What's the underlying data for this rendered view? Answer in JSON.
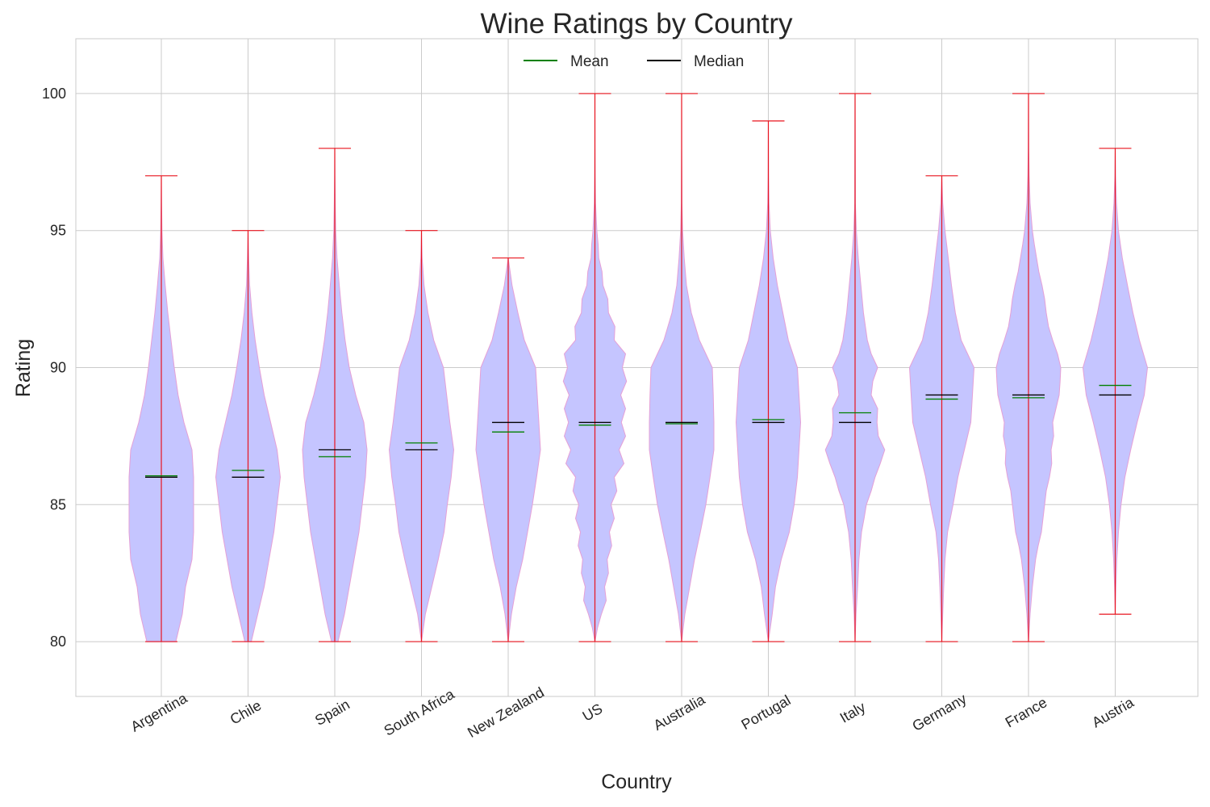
{
  "chart_data": {
    "type": "violin",
    "title": "Wine Ratings by Country",
    "xlabel": "Country",
    "ylabel": "Rating",
    "ylim": [
      78,
      102
    ],
    "yticks": [
      80,
      85,
      90,
      95,
      100
    ],
    "grid": true,
    "legend_placement": "top-center",
    "legend": [
      {
        "label": "Mean",
        "color": "#008000"
      },
      {
        "label": "Median",
        "color": "#000000"
      }
    ],
    "colors": {
      "body_fill": "#c5c5ff",
      "body_edge": "#e5a0d6",
      "extrema_line": "#e8141e",
      "grid": "#cbcbcb",
      "axes_edge": "#cbcbcb",
      "mean": "#008000",
      "median": "#000000"
    },
    "categories": [
      "Argentina",
      "Chile",
      "Spain",
      "South Africa",
      "New Zealand",
      "US",
      "Australia",
      "Portugal",
      "Italy",
      "Germany",
      "France",
      "Austria"
    ],
    "series": [
      {
        "category": "Argentina",
        "min": 80,
        "max": 97,
        "mean": 86.05,
        "median": 86.0,
        "density": [
          [
            80,
            0.45
          ],
          [
            81,
            0.65
          ],
          [
            82,
            0.75
          ],
          [
            83,
            0.95
          ],
          [
            84,
            1.0
          ],
          [
            85,
            1.0
          ],
          [
            86,
            1.0
          ],
          [
            87,
            0.95
          ],
          [
            88,
            0.7
          ],
          [
            89,
            0.52
          ],
          [
            90,
            0.4
          ],
          [
            91,
            0.3
          ],
          [
            92,
            0.2
          ],
          [
            93,
            0.12
          ],
          [
            94,
            0.05
          ],
          [
            95,
            0.02
          ],
          [
            96,
            0.008
          ],
          [
            97,
            0.0
          ]
        ]
      },
      {
        "category": "Chile",
        "min": 80,
        "max": 95,
        "mean": 86.25,
        "median": 86.0,
        "density": [
          [
            80,
            0.1
          ],
          [
            81,
            0.3
          ],
          [
            82,
            0.5
          ],
          [
            83,
            0.65
          ],
          [
            84,
            0.8
          ],
          [
            85,
            0.9
          ],
          [
            86,
            1.0
          ],
          [
            87,
            0.9
          ],
          [
            88,
            0.7
          ],
          [
            89,
            0.5
          ],
          [
            90,
            0.35
          ],
          [
            91,
            0.22
          ],
          [
            92,
            0.12
          ],
          [
            93,
            0.05
          ],
          [
            94,
            0.02
          ],
          [
            95,
            0.0
          ]
        ]
      },
      {
        "category": "Spain",
        "min": 80,
        "max": 98,
        "mean": 86.75,
        "median": 87.0,
        "density": [
          [
            80,
            0.1
          ],
          [
            81,
            0.3
          ],
          [
            82,
            0.45
          ],
          [
            83,
            0.6
          ],
          [
            84,
            0.75
          ],
          [
            85,
            0.85
          ],
          [
            86,
            0.95
          ],
          [
            87,
            1.0
          ],
          [
            88,
            0.9
          ],
          [
            89,
            0.65
          ],
          [
            90,
            0.45
          ],
          [
            91,
            0.32
          ],
          [
            92,
            0.22
          ],
          [
            93,
            0.14
          ],
          [
            94,
            0.07
          ],
          [
            95,
            0.03
          ],
          [
            96,
            0.015
          ],
          [
            97,
            0.005
          ],
          [
            98,
            0.0
          ]
        ]
      },
      {
        "category": "South Africa",
        "min": 80,
        "max": 95,
        "mean": 87.25,
        "median": 87.0,
        "density": [
          [
            80,
            0.0
          ],
          [
            81,
            0.12
          ],
          [
            82,
            0.32
          ],
          [
            83,
            0.52
          ],
          [
            84,
            0.7
          ],
          [
            85,
            0.8
          ],
          [
            86,
            0.92
          ],
          [
            87,
            1.0
          ],
          [
            88,
            0.88
          ],
          [
            89,
            0.78
          ],
          [
            90,
            0.68
          ],
          [
            91,
            0.38
          ],
          [
            92,
            0.2
          ],
          [
            93,
            0.08
          ],
          [
            94,
            0.02
          ],
          [
            95,
            0.0
          ]
        ]
      },
      {
        "category": "New Zealand",
        "min": 80,
        "max": 94,
        "mean": 87.65,
        "median": 88.0,
        "density": [
          [
            80,
            0.0
          ],
          [
            81,
            0.1
          ],
          [
            82,
            0.25
          ],
          [
            83,
            0.45
          ],
          [
            84,
            0.6
          ],
          [
            85,
            0.75
          ],
          [
            86,
            0.88
          ],
          [
            87,
            1.0
          ],
          [
            88,
            0.95
          ],
          [
            89,
            0.9
          ],
          [
            90,
            0.85
          ],
          [
            91,
            0.5
          ],
          [
            92,
            0.3
          ],
          [
            93,
            0.12
          ],
          [
            94,
            0.0
          ]
        ]
      },
      {
        "category": "US",
        "min": 80,
        "max": 100,
        "mean": 87.9,
        "median": 88.0,
        "density": [
          [
            80,
            0.0
          ],
          [
            80.5,
            0.08
          ],
          [
            81,
            0.2
          ],
          [
            81.5,
            0.35
          ],
          [
            82,
            0.3
          ],
          [
            82.5,
            0.42
          ],
          [
            83,
            0.38
          ],
          [
            83.5,
            0.52
          ],
          [
            84,
            0.45
          ],
          [
            84.5,
            0.6
          ],
          [
            85,
            0.5
          ],
          [
            85.5,
            0.68
          ],
          [
            86,
            0.6
          ],
          [
            86.5,
            0.9
          ],
          [
            87,
            0.75
          ],
          [
            87.5,
            0.95
          ],
          [
            88,
            0.82
          ],
          [
            88.5,
            0.95
          ],
          [
            89,
            0.8
          ],
          [
            89.5,
            0.98
          ],
          [
            90,
            0.85
          ],
          [
            90.5,
            0.95
          ],
          [
            91,
            0.6
          ],
          [
            91.5,
            0.62
          ],
          [
            92,
            0.42
          ],
          [
            92.5,
            0.4
          ],
          [
            93,
            0.25
          ],
          [
            93.5,
            0.22
          ],
          [
            94,
            0.12
          ],
          [
            94.5,
            0.1
          ],
          [
            95,
            0.06
          ],
          [
            95.5,
            0.04
          ],
          [
            96,
            0.02
          ],
          [
            97,
            0.008
          ],
          [
            98,
            0.003
          ],
          [
            100,
            0.0
          ]
        ]
      },
      {
        "category": "Australia",
        "min": 80,
        "max": 100,
        "mean": 87.95,
        "median": 88.0,
        "density": [
          [
            80,
            0.0
          ],
          [
            81,
            0.1
          ],
          [
            82,
            0.25
          ],
          [
            83,
            0.4
          ],
          [
            84,
            0.58
          ],
          [
            85,
            0.75
          ],
          [
            86,
            0.88
          ],
          [
            87,
            1.0
          ],
          [
            88,
            1.0
          ],
          [
            89,
            0.98
          ],
          [
            90,
            0.95
          ],
          [
            91,
            0.55
          ],
          [
            92,
            0.3
          ],
          [
            93,
            0.15
          ],
          [
            94,
            0.08
          ],
          [
            95,
            0.03
          ],
          [
            96,
            0.01
          ],
          [
            98,
            0.003
          ],
          [
            100,
            0.0
          ]
        ]
      },
      {
        "category": "Portugal",
        "min": 80,
        "max": 99,
        "mean": 88.1,
        "median": 88.0,
        "density": [
          [
            80,
            0.0
          ],
          [
            81,
            0.12
          ],
          [
            82,
            0.22
          ],
          [
            83,
            0.4
          ],
          [
            84,
            0.65
          ],
          [
            85,
            0.8
          ],
          [
            86,
            0.9
          ],
          [
            87,
            0.95
          ],
          [
            88,
            1.0
          ],
          [
            89,
            0.95
          ],
          [
            90,
            0.9
          ],
          [
            91,
            0.62
          ],
          [
            92,
            0.45
          ],
          [
            93,
            0.28
          ],
          [
            94,
            0.15
          ],
          [
            95,
            0.06
          ],
          [
            96,
            0.02
          ],
          [
            97,
            0.008
          ],
          [
            99,
            0.0
          ]
        ]
      },
      {
        "category": "Italy",
        "min": 80,
        "max": 100,
        "mean": 88.35,
        "median": 88.0,
        "density": [
          [
            80,
            0.0
          ],
          [
            81,
            0.03
          ],
          [
            82,
            0.08
          ],
          [
            83,
            0.12
          ],
          [
            83.5,
            0.16
          ],
          [
            84,
            0.2
          ],
          [
            84.5,
            0.28
          ],
          [
            85,
            0.35
          ],
          [
            85.5,
            0.5
          ],
          [
            86,
            0.62
          ],
          [
            86.5,
            0.78
          ],
          [
            87,
            0.92
          ],
          [
            87.5,
            0.72
          ],
          [
            88,
            0.68
          ],
          [
            88.5,
            0.7
          ],
          [
            89,
            0.5
          ],
          [
            89.5,
            0.55
          ],
          [
            90,
            0.7
          ],
          [
            90.5,
            0.5
          ],
          [
            91,
            0.38
          ],
          [
            91.5,
            0.32
          ],
          [
            92,
            0.26
          ],
          [
            92.5,
            0.22
          ],
          [
            93,
            0.18
          ],
          [
            93.5,
            0.14
          ],
          [
            94,
            0.1
          ],
          [
            94.5,
            0.07
          ],
          [
            95,
            0.04
          ],
          [
            96,
            0.01
          ],
          [
            100,
            0.0
          ]
        ]
      },
      {
        "category": "Germany",
        "min": 80,
        "max": 97,
        "mean": 88.85,
        "median": 89.0,
        "density": [
          [
            80,
            0.0
          ],
          [
            81,
            0.03
          ],
          [
            82,
            0.06
          ],
          [
            83,
            0.1
          ],
          [
            84,
            0.18
          ],
          [
            85,
            0.35
          ],
          [
            86,
            0.5
          ],
          [
            87,
            0.7
          ],
          [
            88,
            0.9
          ],
          [
            89,
            0.95
          ],
          [
            90,
            1.0
          ],
          [
            91,
            0.6
          ],
          [
            92,
            0.42
          ],
          [
            93,
            0.3
          ],
          [
            94,
            0.2
          ],
          [
            95,
            0.1
          ],
          [
            96,
            0.03
          ],
          [
            97,
            0.0
          ]
        ]
      },
      {
        "category": "France",
        "min": 80,
        "max": 100,
        "mean": 88.9,
        "median": 89.0,
        "density": [
          [
            80,
            0.0
          ],
          [
            81,
            0.05
          ],
          [
            82,
            0.12
          ],
          [
            83,
            0.22
          ],
          [
            83.5,
            0.3
          ],
          [
            84,
            0.4
          ],
          [
            84.5,
            0.45
          ],
          [
            85,
            0.5
          ],
          [
            85.5,
            0.55
          ],
          [
            86,
            0.65
          ],
          [
            86.5,
            0.72
          ],
          [
            87,
            0.7
          ],
          [
            87.5,
            0.78
          ],
          [
            88,
            0.75
          ],
          [
            88.5,
            0.85
          ],
          [
            89,
            0.95
          ],
          [
            89.5,
            0.98
          ],
          [
            90,
            1.0
          ],
          [
            90.5,
            0.9
          ],
          [
            91,
            0.75
          ],
          [
            91.5,
            0.62
          ],
          [
            92,
            0.55
          ],
          [
            92.5,
            0.5
          ],
          [
            93,
            0.42
          ],
          [
            93.5,
            0.32
          ],
          [
            94,
            0.25
          ],
          [
            94.5,
            0.18
          ],
          [
            95,
            0.12
          ],
          [
            96,
            0.05
          ],
          [
            97,
            0.02
          ],
          [
            98,
            0.008
          ],
          [
            100,
            0.0
          ]
        ]
      },
      {
        "category": "Austria",
        "min": 81,
        "max": 98,
        "mean": 89.35,
        "median": 89.0,
        "density": [
          [
            81,
            0.0
          ],
          [
            82,
            0.02
          ],
          [
            83,
            0.05
          ],
          [
            84,
            0.1
          ],
          [
            85,
            0.18
          ],
          [
            86,
            0.3
          ],
          [
            87,
            0.48
          ],
          [
            88,
            0.68
          ],
          [
            89,
            0.9
          ],
          [
            90,
            1.0
          ],
          [
            91,
            0.75
          ],
          [
            92,
            0.55
          ],
          [
            93,
            0.38
          ],
          [
            94,
            0.22
          ],
          [
            95,
            0.1
          ],
          [
            96,
            0.04
          ],
          [
            97,
            0.01
          ],
          [
            98,
            0.0
          ]
        ]
      }
    ]
  }
}
